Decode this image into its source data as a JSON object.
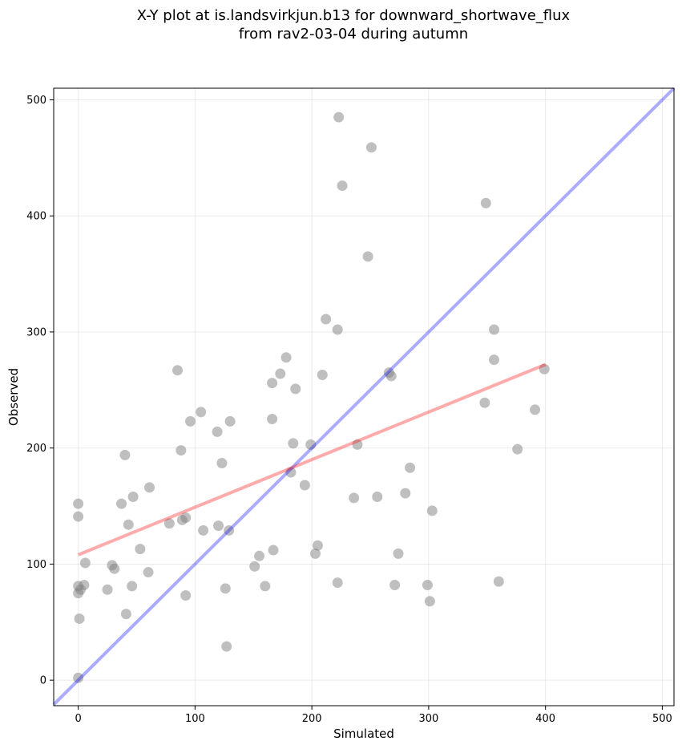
{
  "chart_data": {
    "type": "scatter",
    "title_line1": "X-Y plot at is.landsvirkjun.b13 for downward_shortwave_flux",
    "title_line2": "from rav2-03-04 during autumn",
    "xlabel": "Simulated",
    "ylabel": "Observed",
    "xlim": [
      -21,
      510
    ],
    "ylim": [
      -22,
      510
    ],
    "xticks": [
      0,
      100,
      200,
      300,
      400,
      500
    ],
    "yticks": [
      0,
      100,
      200,
      300,
      400,
      500
    ],
    "grid": true,
    "colors": {
      "points": "#808080",
      "one_to_one": "#0000ff",
      "fit": "#ff0000"
    },
    "one_to_one_line": [
      [
        -21,
        -21
      ],
      [
        510,
        510
      ]
    ],
    "fit_line": {
      "x_start": 0,
      "x_end": 400,
      "y_start": 108,
      "y_end": 272
    },
    "points": [
      [
        0,
        2
      ],
      [
        1,
        53
      ],
      [
        0,
        75
      ],
      [
        0,
        81
      ],
      [
        2,
        78
      ],
      [
        5,
        82
      ],
      [
        6,
        101
      ],
      [
        0,
        141
      ],
      [
        0,
        152
      ],
      [
        25,
        78
      ],
      [
        29,
        99
      ],
      [
        31,
        96
      ],
      [
        37,
        152
      ],
      [
        40,
        194
      ],
      [
        41,
        57
      ],
      [
        43,
        134
      ],
      [
        46,
        81
      ],
      [
        47,
        158
      ],
      [
        53,
        113
      ],
      [
        60,
        93
      ],
      [
        61,
        166
      ],
      [
        78,
        135
      ],
      [
        85,
        267
      ],
      [
        88,
        198
      ],
      [
        89,
        138
      ],
      [
        92,
        73
      ],
      [
        92,
        140
      ],
      [
        96,
        223
      ],
      [
        105,
        231
      ],
      [
        107,
        129
      ],
      [
        119,
        214
      ],
      [
        120,
        133
      ],
      [
        123,
        187
      ],
      [
        126,
        79
      ],
      [
        127,
        29
      ],
      [
        129,
        129
      ],
      [
        130,
        223
      ],
      [
        151,
        98
      ],
      [
        155,
        107
      ],
      [
        160,
        81
      ],
      [
        166,
        256
      ],
      [
        166,
        225
      ],
      [
        167,
        112
      ],
      [
        173,
        264
      ],
      [
        178,
        278
      ],
      [
        182,
        179
      ],
      [
        184,
        204
      ],
      [
        186,
        251
      ],
      [
        194,
        168
      ],
      [
        199,
        203
      ],
      [
        203,
        109
      ],
      [
        205,
        116
      ],
      [
        209,
        263
      ],
      [
        212,
        311
      ],
      [
        222,
        302
      ],
      [
        222,
        84
      ],
      [
        223,
        485
      ],
      [
        226,
        426
      ],
      [
        236,
        157
      ],
      [
        239,
        203
      ],
      [
        248,
        365
      ],
      [
        251,
        459
      ],
      [
        256,
        158
      ],
      [
        266,
        265
      ],
      [
        268,
        262
      ],
      [
        271,
        82
      ],
      [
        274,
        109
      ],
      [
        280,
        161
      ],
      [
        284,
        183
      ],
      [
        299,
        82
      ],
      [
        301,
        68
      ],
      [
        303,
        146
      ],
      [
        348,
        239
      ],
      [
        349,
        411
      ],
      [
        356,
        276
      ],
      [
        356,
        302
      ],
      [
        360,
        85
      ],
      [
        376,
        199
      ],
      [
        391,
        233
      ],
      [
        399,
        268
      ]
    ]
  }
}
